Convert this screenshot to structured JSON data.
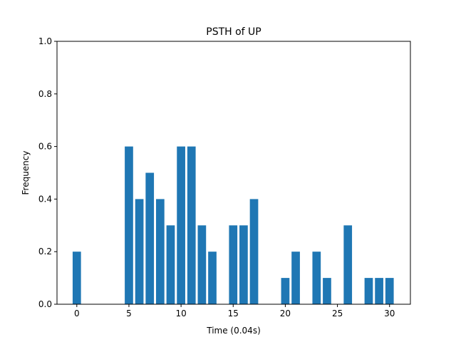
{
  "chart_data": {
    "type": "bar",
    "title": "PSTH of UP",
    "xlabel": "Time (0.04s)",
    "ylabel": "Frequency",
    "x": [
      0,
      5,
      6,
      7,
      8,
      9,
      10,
      11,
      12,
      13,
      15,
      16,
      17,
      20,
      21,
      23,
      24,
      26,
      28,
      29,
      30
    ],
    "values": [
      0.2,
      0.6,
      0.4,
      0.5,
      0.4,
      0.3,
      0.6,
      0.6,
      0.3,
      0.2,
      0.3,
      0.3,
      0.4,
      0.1,
      0.2,
      0.2,
      0.1,
      0.3,
      0.1,
      0.1,
      0.1
    ],
    "xlim": [
      -1.9,
      32.0
    ],
    "ylim": [
      0,
      1.0
    ],
    "xticks": [
      0,
      5,
      10,
      15,
      20,
      25,
      30
    ],
    "xtick_labels": [
      "0",
      "5",
      "10",
      "15",
      "20",
      "25",
      "30"
    ],
    "yticks": [
      0.0,
      0.2,
      0.4,
      0.6,
      0.8,
      1.0
    ],
    "ytick_labels": [
      "0.0",
      "0.2",
      "0.4",
      "0.6",
      "0.8",
      "1.0"
    ],
    "bar_width": 0.8,
    "bar_color": "#1f77b4",
    "grid": false,
    "legend": "none"
  }
}
